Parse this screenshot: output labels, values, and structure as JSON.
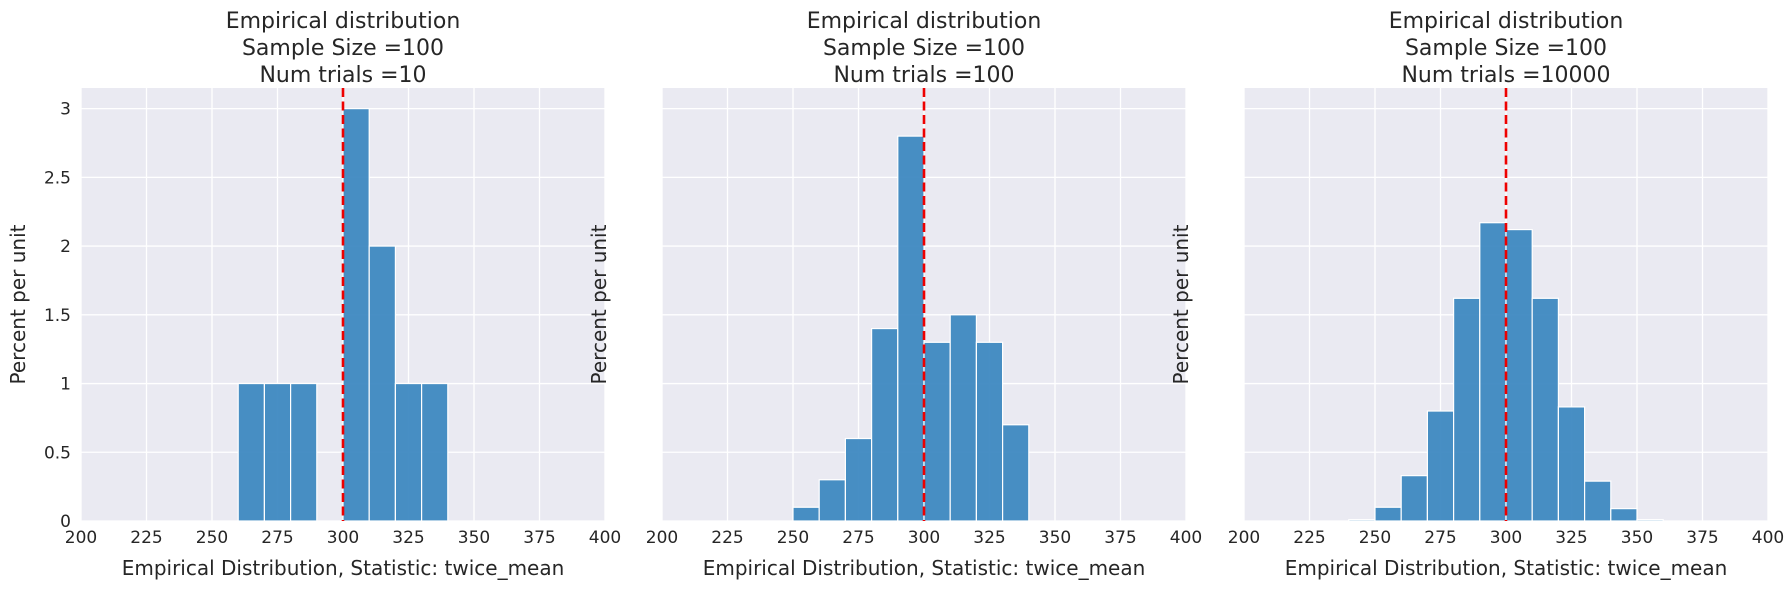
{
  "figure": {
    "background": "#ffffff",
    "axes_bg": "#eaeaf2",
    "grid_color": "#ffffff",
    "bar_color": "#3a87c0",
    "bar_edge": "#ffffff",
    "ref_line_color": "#ee0000"
  },
  "chart_data": [
    {
      "type": "bar",
      "title_lines": [
        "Empirical distribution",
        "Sample Size =100",
        "Num trials =10"
      ],
      "xlabel": "Empirical Distribution, Statistic: twice_mean",
      "ylabel": "Percent per unit",
      "xlim": [
        200,
        400
      ],
      "ylim": [
        0,
        3.15
      ],
      "xticks": [
        "200",
        "225",
        "250",
        "275",
        "300",
        "325",
        "350",
        "375",
        "400"
      ],
      "yticks": [
        "0",
        "0.5",
        "1",
        "1.5",
        "2",
        "2.5",
        "3"
      ],
      "show_ytick_labels": true,
      "reference_line": 300,
      "grid": true,
      "bins": [
        {
          "x0": 260,
          "x1": 270,
          "value": 1
        },
        {
          "x0": 270,
          "x1": 280,
          "value": 1
        },
        {
          "x0": 280,
          "x1": 290,
          "value": 1
        },
        {
          "x0": 300,
          "x1": 310,
          "value": 3
        },
        {
          "x0": 310,
          "x1": 320,
          "value": 2
        },
        {
          "x0": 320,
          "x1": 330,
          "value": 1
        },
        {
          "x0": 330,
          "x1": 340,
          "value": 1
        }
      ]
    },
    {
      "type": "bar",
      "title_lines": [
        "Empirical distribution",
        "Sample Size =100",
        "Num trials =100"
      ],
      "xlabel": "Empirical Distribution, Statistic: twice_mean",
      "ylabel": "Percent per unit",
      "xlim": [
        200,
        400
      ],
      "ylim": [
        0,
        3.15
      ],
      "xticks": [
        "200",
        "225",
        "250",
        "275",
        "300",
        "325",
        "350",
        "375",
        "400"
      ],
      "yticks": [
        "0",
        "0.5",
        "1",
        "1.5",
        "2",
        "2.5",
        "3"
      ],
      "show_ytick_labels": false,
      "reference_line": 300,
      "grid": true,
      "bins": [
        {
          "x0": 250,
          "x1": 260,
          "value": 0.1
        },
        {
          "x0": 260,
          "x1": 270,
          "value": 0.3
        },
        {
          "x0": 270,
          "x1": 280,
          "value": 0.6
        },
        {
          "x0": 280,
          "x1": 290,
          "value": 1.4
        },
        {
          "x0": 290,
          "x1": 300,
          "value": 2.8
        },
        {
          "x0": 300,
          "x1": 310,
          "value": 1.3
        },
        {
          "x0": 310,
          "x1": 320,
          "value": 1.5
        },
        {
          "x0": 320,
          "x1": 330,
          "value": 1.3
        },
        {
          "x0": 330,
          "x1": 340,
          "value": 0.7
        }
      ]
    },
    {
      "type": "bar",
      "title_lines": [
        "Empirical distribution",
        "Sample Size =100",
        "Num trials =10000"
      ],
      "xlabel": "Empirical Distribution, Statistic: twice_mean",
      "ylabel": "Percent per unit",
      "xlim": [
        200,
        400
      ],
      "ylim": [
        0,
        3.15
      ],
      "xticks": [
        "200",
        "225",
        "250",
        "275",
        "300",
        "325",
        "350",
        "375",
        "400"
      ],
      "yticks": [
        "0",
        "0.5",
        "1",
        "1.5",
        "2",
        "2.5",
        "3"
      ],
      "show_ytick_labels": false,
      "reference_line": 300,
      "grid": true,
      "bins": [
        {
          "x0": 240,
          "x1": 250,
          "value": 0.01
        },
        {
          "x0": 250,
          "x1": 260,
          "value": 0.1
        },
        {
          "x0": 260,
          "x1": 270,
          "value": 0.33
        },
        {
          "x0": 270,
          "x1": 280,
          "value": 0.8
        },
        {
          "x0": 280,
          "x1": 290,
          "value": 1.62
        },
        {
          "x0": 290,
          "x1": 300,
          "value": 2.17
        },
        {
          "x0": 300,
          "x1": 310,
          "value": 2.12
        },
        {
          "x0": 310,
          "x1": 320,
          "value": 1.62
        },
        {
          "x0": 320,
          "x1": 330,
          "value": 0.83
        },
        {
          "x0": 330,
          "x1": 340,
          "value": 0.29
        },
        {
          "x0": 340,
          "x1": 350,
          "value": 0.09
        },
        {
          "x0": 350,
          "x1": 360,
          "value": 0.01
        }
      ]
    }
  ]
}
